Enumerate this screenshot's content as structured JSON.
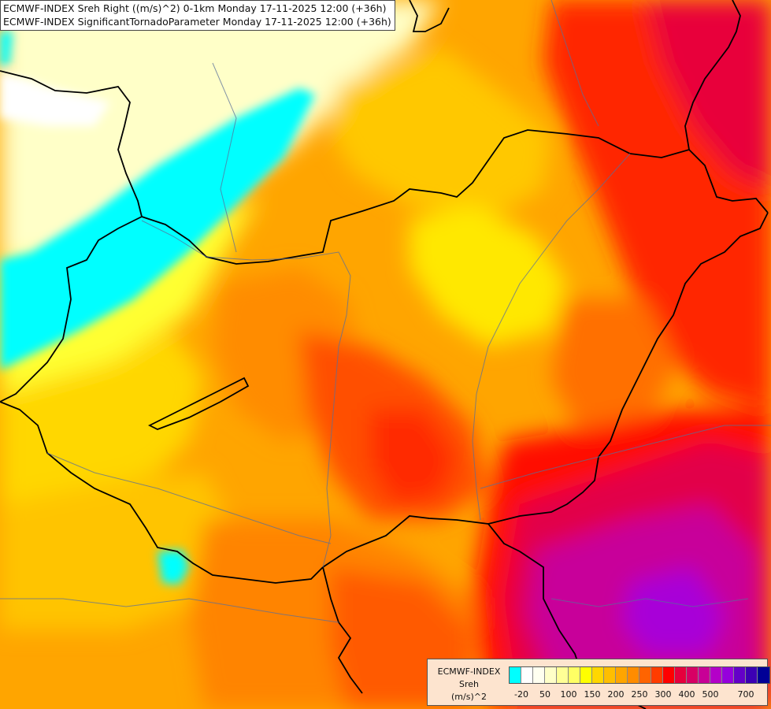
{
  "title": {
    "line1": "ECMWF-INDEX Sreh Right ((m/s)^2) 0-1km Monday 17-11-2025 12:00 (+36h)",
    "line2": "ECMWF-INDEX SignificantTornadoParameter Monday 17-11-2025 12:00 (+36h)"
  },
  "legend": {
    "line1": "ECMWF-INDEX",
    "line2": "Sreh",
    "line3": "(m/s)^2",
    "colors": [
      "#00ffff",
      "#ffffff",
      "#fffff0",
      "#ffffc8",
      "#ffff96",
      "#ffff64",
      "#ffff00",
      "#ffd700",
      "#ffbe00",
      "#ffa500",
      "#ff8c00",
      "#ff6400",
      "#ff3c00",
      "#ff0000",
      "#e6003c",
      "#d70064",
      "#c80096",
      "#b400c8",
      "#9600dc",
      "#6400c8",
      "#3c00b4",
      "#000096"
    ],
    "ticks": [
      "-20",
      "50",
      "100",
      "150",
      "200",
      "250",
      "300",
      "400",
      "500",
      "700"
    ]
  },
  "palette": {
    "cyan": "#00ffff",
    "pale": "#ffffc8",
    "yellow": "#ffff00",
    "gold": "#ffd700",
    "orange": "#ffa500",
    "deep_orange": "#ff6400",
    "red": "#ff1a00",
    "crimson": "#e60040",
    "magenta": "#c8009a",
    "purple": "#a000d0"
  }
}
